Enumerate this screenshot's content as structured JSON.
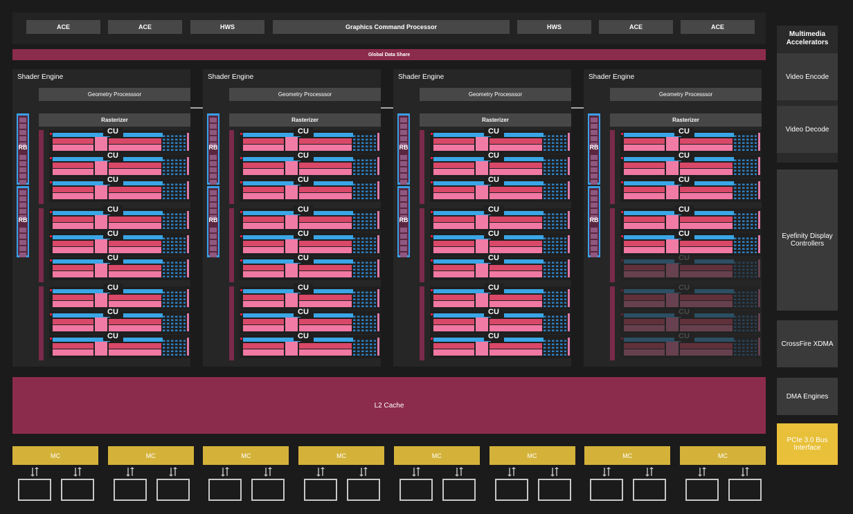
{
  "command_bar": {
    "items": [
      "ACE",
      "ACE",
      "HWS",
      "Graphics Command Processor",
      "HWS",
      "ACE",
      "ACE"
    ]
  },
  "global_data_share": "Global Data Share",
  "shader_engines": [
    {
      "title": "Shader Engine",
      "geometry": "Geometry Processsor",
      "rasterizer": "Rasterizer",
      "rb_labels": [
        "RB",
        "RB"
      ],
      "cu_label": "CU",
      "disabled_cus": 0
    },
    {
      "title": "Shader Engine",
      "geometry": "Geometry Processsor",
      "rasterizer": "Rasterizer",
      "rb_labels": [
        "RB",
        "RB"
      ],
      "cu_label": "CU",
      "disabled_cus": 0
    },
    {
      "title": "Shader Engine",
      "geometry": "Geometry Processsor",
      "rasterizer": "Rasterizer",
      "rb_labels": [
        "RB",
        "RB"
      ],
      "cu_label": "CU",
      "disabled_cus": 0
    },
    {
      "title": "Shader Engine",
      "geometry": "Geometry Processsor",
      "rasterizer": "Rasterizer",
      "rb_labels": [
        "RB",
        "RB"
      ],
      "cu_label": "CU",
      "disabled_cus": 4
    }
  ],
  "l2_cache": "L2 Cache",
  "memory_controllers": [
    "MC",
    "MC",
    "MC",
    "MC",
    "MC",
    "MC",
    "MC",
    "MC"
  ],
  "right_panel": {
    "multimedia_title": "Multimedia Accelerators",
    "video_encode": "Video Encode",
    "video_decode": "Video Decode",
    "eyefinity": "Eyefinity Display Controllers",
    "crossfire": "CrossFire XDMA",
    "dma": "DMA Engines",
    "pcie": "PCIe 3.0 Bus Interface"
  },
  "colors": {
    "background": "#1b1b1b",
    "magenta": "#8c2c4c",
    "cu_blue": "#3aa6e6",
    "cu_pink": "#f078a2",
    "mc_gold": "#d4b23a",
    "pcie_gold": "#e8c03a"
  }
}
